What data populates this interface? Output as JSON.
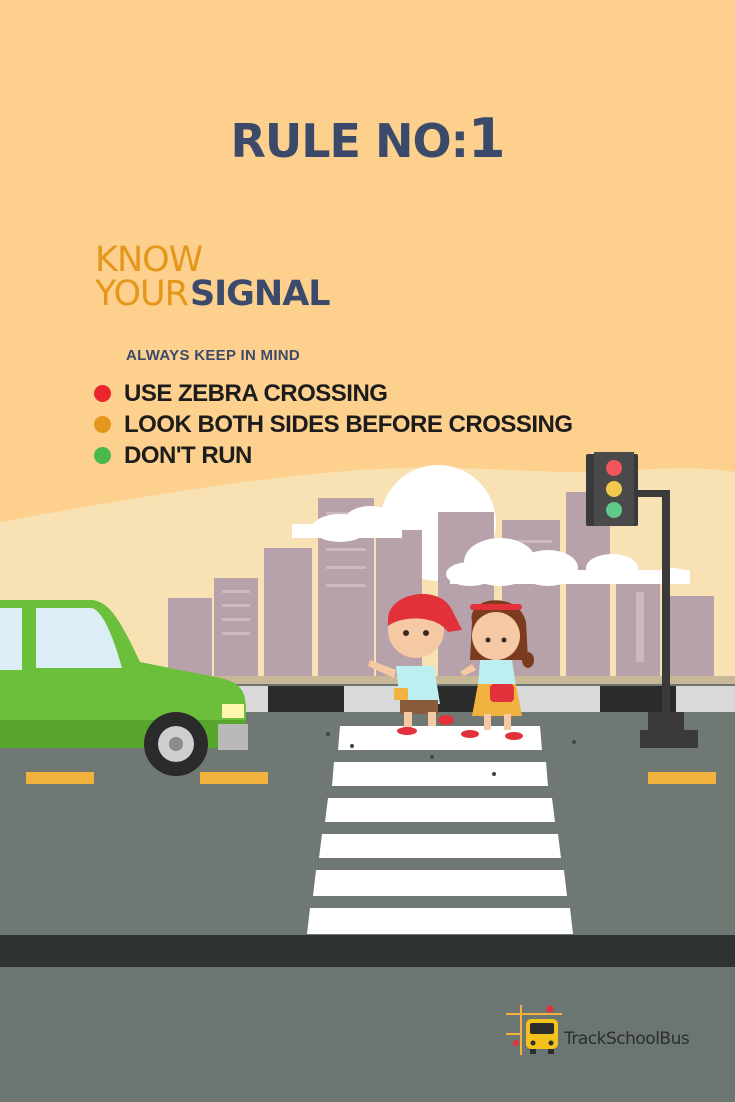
{
  "title": {
    "prefix": "RULE NO:",
    "number": "1"
  },
  "heading": {
    "line1": "KNOW",
    "line2a": "YOUR",
    "line2b": "SIGNAL"
  },
  "subheading": "ALWAYS KEEP IN MIND",
  "tips": [
    {
      "text": "USE ZEBRA CROSSING",
      "color": "#e8262c"
    },
    {
      "text": "LOOK BOTH SIDES BEFORE CROSSING",
      "color": "#e5961c"
    },
    {
      "text": "DON'T RUN",
      "color": "#4bb84d"
    }
  ],
  "brand": "TrackSchoolBus",
  "colors": {
    "background": "#fdd08d",
    "title": "#3b4a6b",
    "accent": "#e5971b",
    "road": "#6b7571",
    "car": "#6cbf3a"
  }
}
